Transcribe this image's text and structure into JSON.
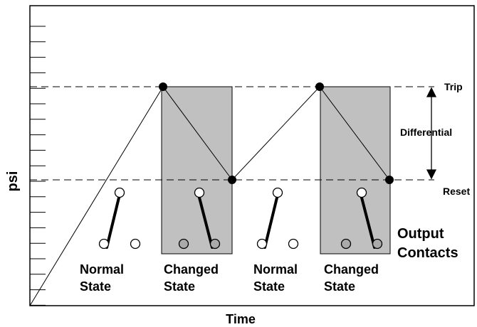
{
  "labels": {
    "y_axis": "psi",
    "x_axis": "Time",
    "trip": "Trip",
    "differential": "Differential",
    "reset": "Reset",
    "output_contacts_line1": "Output",
    "output_contacts_line2": "Contacts"
  },
  "states": [
    {
      "line1": "Normal",
      "line2": "State",
      "changed": false
    },
    {
      "line1": "Changed",
      "line2": "State",
      "changed": true
    },
    {
      "line1": "Normal",
      "line2": "State",
      "changed": false
    },
    {
      "line1": "Changed",
      "line2": "State",
      "changed": true
    }
  ],
  "colors": {
    "shade": "#c0c0c0",
    "line": "#000000",
    "contact_fill_normal": "#ffffff",
    "contact_fill_changed": "#aaaaaa"
  }
}
